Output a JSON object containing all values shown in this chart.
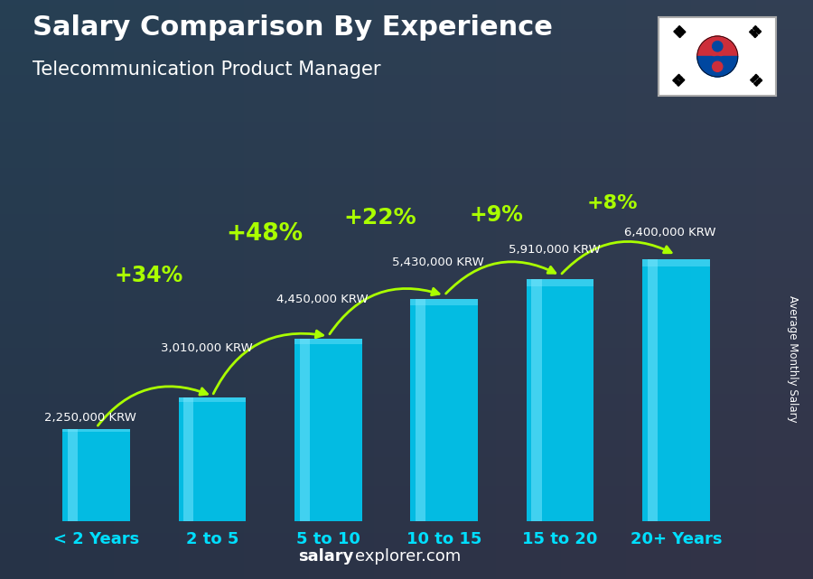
{
  "title": "Salary Comparison By Experience",
  "subtitle": "Telecommunication Product Manager",
  "categories": [
    "< 2 Years",
    "2 to 5",
    "5 to 10",
    "10 to 15",
    "15 to 20",
    "20+ Years"
  ],
  "values": [
    2250000,
    3010000,
    4450000,
    5430000,
    5910000,
    6400000
  ],
  "value_labels": [
    "2,250,000 KRW",
    "3,010,000 KRW",
    "4,450,000 KRW",
    "5,430,000 KRW",
    "5,910,000 KRW",
    "6,400,000 KRW"
  ],
  "pct_changes": [
    null,
    "+34%",
    "+48%",
    "+22%",
    "+9%",
    "+8%"
  ],
  "bar_color_top": "#00CFFF",
  "bar_color_bottom": "#0088CC",
  "title_color": "#FFFFFF",
  "subtitle_color": "#FFFFFF",
  "label_color": "#00DFFF",
  "pct_color": "#AAFF00",
  "arrow_color": "#AAFF00",
  "krw_color": "#FFFFFF",
  "ylabel": "Average Monthly Salary",
  "footer_bold": "salary",
  "footer_normal": "explorer.com",
  "background_color": "#2a3540",
  "ylim": [
    0,
    8200000
  ],
  "bar_alpha": 0.92,
  "bar_width": 0.58
}
